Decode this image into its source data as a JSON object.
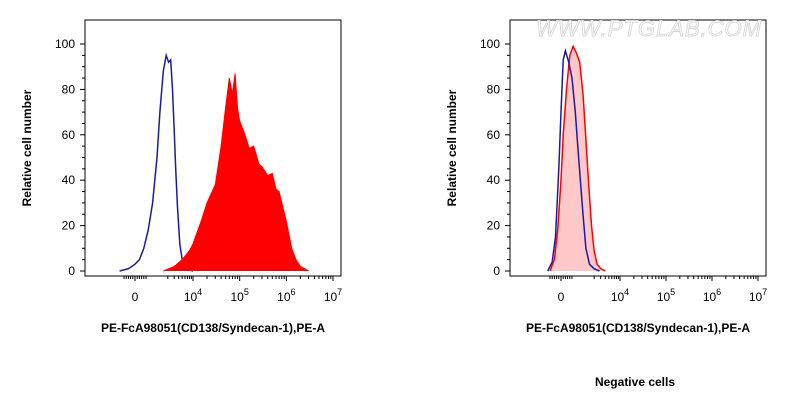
{
  "watermark": "WWW.PTGLAB.COM",
  "caption": "Negative cells",
  "colors": {
    "isotype_line": "#1a1aa6",
    "sample_fill": "#ff0000",
    "sample_line": "#e00000",
    "negative_fill": "#ffc8c8"
  },
  "chart_data": [
    {
      "type": "area",
      "title": "",
      "xlabel": "PE-FcA98051(CD138/Syndecan-1),PE-A",
      "ylabel": "Relative cell number",
      "x_scale": "biexponential",
      "xlim": [
        -1000,
        10000000
      ],
      "ylim": [
        0,
        100
      ],
      "x_ticks": [
        {
          "value": 0,
          "label": "0"
        },
        {
          "value": 10000,
          "base": "10",
          "exp": "4"
        },
        {
          "value": 100000,
          "base": "10",
          "exp": "5"
        },
        {
          "value": 1000000,
          "base": "10",
          "exp": "6"
        },
        {
          "value": 10000000,
          "base": "10",
          "exp": "7"
        }
      ],
      "y_ticks": [
        0,
        20,
        40,
        60,
        80,
        100
      ],
      "grid": false,
      "series": [
        {
          "style": "outline",
          "color": "#1a1aa6",
          "x": [
            -700,
            -300,
            0,
            200,
            400,
            600,
            800,
            1000,
            1200,
            1500,
            1800,
            2100,
            2400,
            2700,
            3000,
            3300,
            3700,
            4300,
            5000,
            6000,
            8000,
            10000
          ],
          "y": [
            0,
            1,
            3,
            5,
            10,
            18,
            30,
            50,
            70,
            88,
            95,
            92,
            93,
            80,
            62,
            45,
            28,
            12,
            5,
            2,
            0.5,
            0
          ]
        },
        {
          "style": "filled",
          "color": "#ff0000",
          "x": [
            1500,
            3000,
            5000,
            8000,
            10000,
            15000,
            20000,
            30000,
            40000,
            50000,
            60000,
            70000,
            80000,
            90000,
            100000,
            130000,
            160000,
            200000,
            260000,
            300000,
            400000,
            500000,
            600000,
            700000,
            800000,
            1000000,
            1300000,
            1600000,
            2000000,
            3000000
          ],
          "y": [
            0,
            2,
            5,
            9,
            12,
            22,
            30,
            38,
            55,
            72,
            85,
            78,
            87,
            72,
            66,
            60,
            54,
            55,
            47,
            46,
            42,
            43,
            36,
            35,
            30,
            22,
            10,
            5,
            2,
            0
          ]
        }
      ]
    },
    {
      "type": "area",
      "title": "",
      "xlabel": "PE-FcA98051(CD138/Syndecan-1),PE-A",
      "ylabel": "Relative cell number",
      "x_scale": "biexponential",
      "xlim": [
        -1000,
        10000000
      ],
      "ylim": [
        0,
        100
      ],
      "x_ticks": [
        {
          "value": 0,
          "label": "0"
        },
        {
          "value": 10000,
          "base": "10",
          "exp": "4"
        },
        {
          "value": 100000,
          "base": "10",
          "exp": "5"
        },
        {
          "value": 1000000,
          "base": "10",
          "exp": "6"
        },
        {
          "value": 10000000,
          "base": "10",
          "exp": "7"
        }
      ],
      "y_ticks": [
        0,
        20,
        40,
        60,
        80,
        100
      ],
      "grid": false,
      "series": [
        {
          "style": "filled",
          "color": "#ff0000",
          "x": [
            -500,
            -300,
            -150,
            0,
            100,
            250,
            400,
            550,
            700,
            850,
            1000,
            1200,
            1400,
            1700,
            2000,
            2400,
            3000,
            4000
          ],
          "y": [
            0,
            5,
            18,
            40,
            60,
            80,
            95,
            99,
            96,
            92,
            78,
            58,
            40,
            20,
            9,
            3,
            1,
            0
          ]
        },
        {
          "style": "outline",
          "color": "#1a1aa6",
          "x": [
            -600,
            -400,
            -250,
            -100,
            0,
            100,
            200,
            350,
            500,
            650,
            800,
            1000,
            1200,
            1500,
            2000,
            2800
          ],
          "y": [
            0,
            4,
            15,
            45,
            70,
            93,
            97,
            92,
            85,
            70,
            50,
            25,
            10,
            3,
            1,
            0
          ]
        }
      ]
    }
  ]
}
